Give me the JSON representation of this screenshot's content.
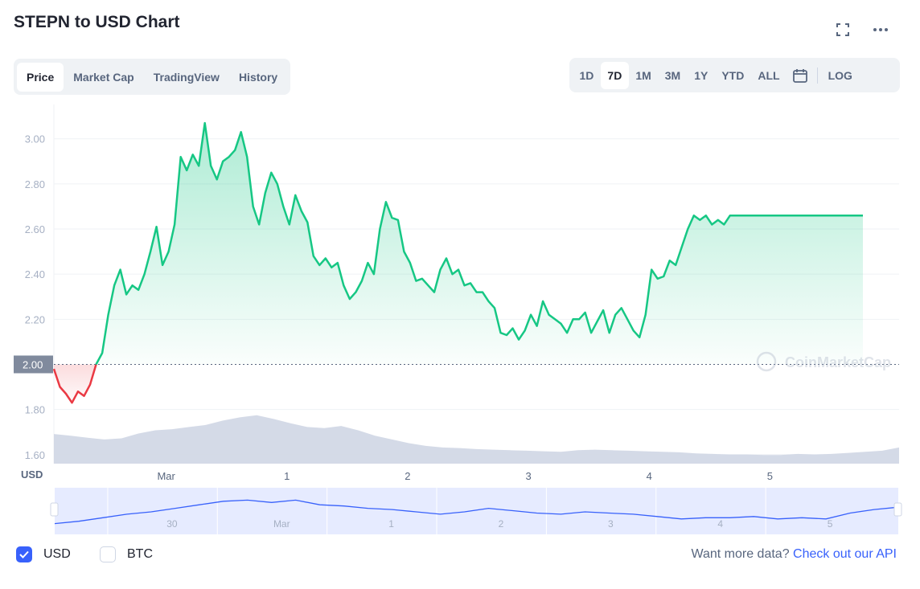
{
  "header": {
    "title": "STEPN to USD Chart"
  },
  "icons": {
    "expand": "expand-icon",
    "more": "more-icon",
    "calendar": "calendar-icon",
    "check": "check-icon"
  },
  "tabs": [
    {
      "label": "Price",
      "active": true
    },
    {
      "label": "Market Cap",
      "active": false
    },
    {
      "label": "TradingView",
      "active": false
    },
    {
      "label": "History",
      "active": false
    }
  ],
  "ranges": {
    "items": [
      {
        "label": "1D",
        "active": false
      },
      {
        "label": "7D",
        "active": true
      },
      {
        "label": "1M",
        "active": false
      },
      {
        "label": "3M",
        "active": false
      },
      {
        "label": "1Y",
        "active": false
      },
      {
        "label": "YTD",
        "active": false
      },
      {
        "label": "ALL",
        "active": false
      }
    ],
    "log_label": "LOG"
  },
  "colors": {
    "up": "#16c784",
    "down": "#ea3943",
    "nav_line": "#3861fb",
    "volume": "#cfd6e4",
    "accent": "#3861fb"
  },
  "chart_data": {
    "type": "line",
    "y_unit": "USD",
    "yticks": [
      "3.00",
      "2.80",
      "2.60",
      "2.40",
      "2.20",
      "1.80",
      "1.60"
    ],
    "ylim": [
      1.56,
      3.17
    ],
    "reference_value": 2.0,
    "reference_label": "2.00",
    "xlim": [
      0,
      7
    ],
    "xticks": [
      {
        "x": 0.93,
        "label": "Mar"
      },
      {
        "x": 1.93,
        "label": "1"
      },
      {
        "x": 2.93,
        "label": "2"
      },
      {
        "x": 3.93,
        "label": "3"
      },
      {
        "x": 4.93,
        "label": "4"
      },
      {
        "x": 5.93,
        "label": "5"
      }
    ],
    "nav_ticks": [
      {
        "x": 0.45,
        "label": "30"
      },
      {
        "x": 1.36,
        "label": "Mar"
      },
      {
        "x": 2.27,
        "label": "1"
      },
      {
        "x": 3.18,
        "label": "2"
      },
      {
        "x": 4.09,
        "label": "3"
      },
      {
        "x": 5.0,
        "label": "4"
      },
      {
        "x": 5.91,
        "label": "5"
      }
    ],
    "watermark": "CoinMarketCap",
    "series": [
      {
        "x": [
          0,
          0.05,
          0.1,
          0.15,
          0.2,
          0.25,
          0.3,
          0.35,
          0.4,
          0.45,
          0.5,
          0.55,
          0.6,
          0.65,
          0.7,
          0.75,
          0.8,
          0.85,
          0.9,
          0.95,
          1.0,
          1.05,
          1.1,
          1.15,
          1.2,
          1.25,
          1.3,
          1.35,
          1.4,
          1.45,
          1.5,
          1.55,
          1.6,
          1.65,
          1.7,
          1.75,
          1.8,
          1.85,
          1.9,
          1.95,
          2.0,
          2.05,
          2.1,
          2.15,
          2.2,
          2.25,
          2.3,
          2.35,
          2.4,
          2.45,
          2.5,
          2.55,
          2.6,
          2.65,
          2.7,
          2.75,
          2.8,
          2.85,
          2.9,
          2.95,
          3.0,
          3.05,
          3.1,
          3.15,
          3.2,
          3.25,
          3.3,
          3.35,
          3.4,
          3.45,
          3.5,
          3.55,
          3.6,
          3.65,
          3.7,
          3.75,
          3.8,
          3.85,
          3.9,
          3.95,
          4.0,
          4.05,
          4.1,
          4.15,
          4.2,
          4.25,
          4.3,
          4.35,
          4.4,
          4.45,
          4.5,
          4.55,
          4.6,
          4.65,
          4.7,
          4.75,
          4.8,
          4.85,
          4.9,
          4.95,
          5.0,
          5.05,
          5.1,
          5.15,
          5.2,
          5.25,
          5.3,
          5.35,
          5.4,
          5.45,
          5.5,
          5.55,
          5.6,
          5.65,
          5.7,
          5.75,
          5.8,
          5.85,
          5.9,
          5.95,
          6.0,
          6.05,
          6.1,
          6.15,
          6.2,
          6.25,
          6.3,
          6.35,
          6.4,
          6.45,
          6.5,
          6.55,
          6.6,
          6.65,
          6.7
        ],
        "values": [
          1.98,
          1.9,
          1.87,
          1.83,
          1.88,
          1.86,
          1.91,
          2.0,
          2.05,
          2.22,
          2.35,
          2.42,
          2.31,
          2.35,
          2.33,
          2.4,
          2.5,
          2.61,
          2.44,
          2.5,
          2.62,
          2.92,
          2.86,
          2.93,
          2.88,
          3.07,
          2.88,
          2.82,
          2.9,
          2.92,
          2.95,
          3.03,
          2.92,
          2.7,
          2.62,
          2.76,
          2.85,
          2.8,
          2.7,
          2.62,
          2.75,
          2.68,
          2.63,
          2.48,
          2.44,
          2.47,
          2.43,
          2.45,
          2.35,
          2.29,
          2.32,
          2.37,
          2.45,
          2.4,
          2.6,
          2.72,
          2.65,
          2.64,
          2.5,
          2.45,
          2.37,
          2.38,
          2.35,
          2.32,
          2.42,
          2.47,
          2.4,
          2.42,
          2.35,
          2.36,
          2.32,
          2.32,
          2.28,
          2.25,
          2.14,
          2.13,
          2.16,
          2.11,
          2.15,
          2.22,
          2.17,
          2.28,
          2.22,
          2.2,
          2.18,
          2.14,
          2.2,
          2.2,
          2.23,
          2.14,
          2.19,
          2.24,
          2.14,
          2.22,
          2.25,
          2.2,
          2.15,
          2.12,
          2.22,
          2.42,
          2.38,
          2.39,
          2.46,
          2.44,
          2.52,
          2.6,
          2.66,
          2.64,
          2.66,
          2.62,
          2.64,
          2.62,
          2.66,
          2.66,
          2.66,
          2.66,
          2.66,
          2.66,
          2.66,
          2.66,
          2.66,
          2.66,
          2.66,
          2.66,
          2.66,
          2.66,
          2.66,
          2.66,
          2.66,
          2.66,
          2.66,
          2.66,
          2.66,
          2.66,
          2.66
        ]
      }
    ],
    "volume": [
      0.55,
      0.52,
      0.48,
      0.45,
      0.47,
      0.56,
      0.62,
      0.64,
      0.68,
      0.72,
      0.8,
      0.86,
      0.9,
      0.83,
      0.75,
      0.68,
      0.66,
      0.7,
      0.62,
      0.52,
      0.45,
      0.38,
      0.33,
      0.3,
      0.29,
      0.27,
      0.26,
      0.25,
      0.24,
      0.23,
      0.22,
      0.25,
      0.26,
      0.25,
      0.24,
      0.23,
      0.22,
      0.21,
      0.19,
      0.18,
      0.17,
      0.17,
      0.16,
      0.16,
      0.18,
      0.17,
      0.18,
      0.2,
      0.22,
      0.24,
      0.3
    ],
    "nav_values": [
      1.95,
      2.05,
      2.2,
      2.35,
      2.45,
      2.6,
      2.75,
      2.9,
      2.95,
      2.85,
      2.95,
      2.75,
      2.7,
      2.6,
      2.55,
      2.45,
      2.35,
      2.45,
      2.6,
      2.5,
      2.4,
      2.35,
      2.45,
      2.4,
      2.35,
      2.25,
      2.15,
      2.2,
      2.2,
      2.25,
      2.15,
      2.2,
      2.15,
      2.4,
      2.55,
      2.65
    ]
  },
  "footer": {
    "currencies": [
      {
        "label": "USD",
        "checked": true
      },
      {
        "label": "BTC",
        "checked": false
      }
    ],
    "prompt": "Want more data? ",
    "link": "Check out our API"
  }
}
